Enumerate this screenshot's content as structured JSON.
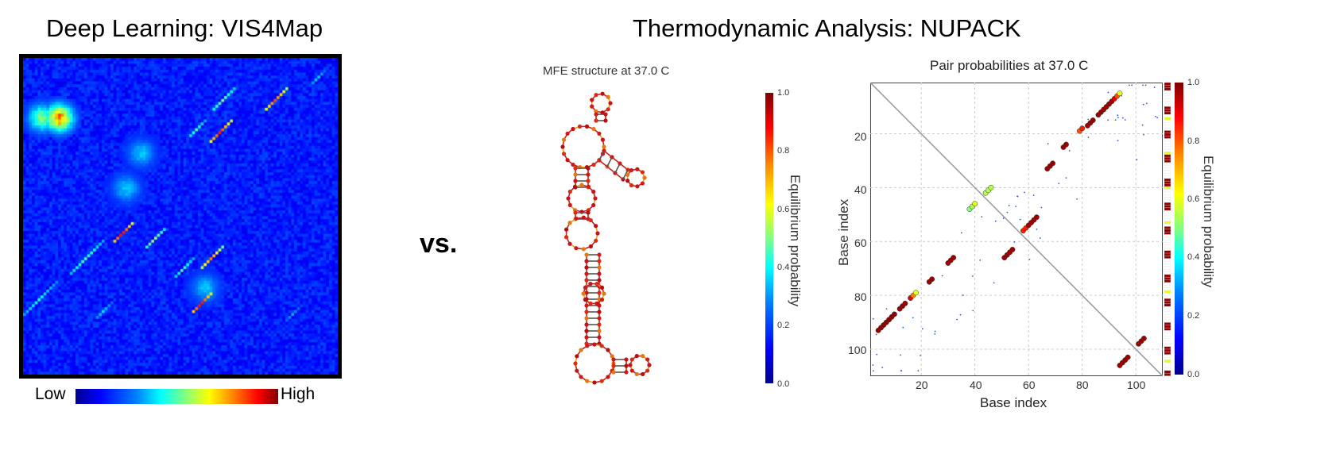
{
  "panel_left": {
    "title": "Deep Learning: VIS4Map",
    "colorbar": {
      "low_label": "Low",
      "high_label": "High"
    }
  },
  "separator": "vs.",
  "panel_right": {
    "title": "Thermodynamic Analysis: NUPACK",
    "mfe": {
      "title": "MFE structure at 37.0 C",
      "colorbar_label": "Equilibrium probability",
      "colorbar_ticks": [
        "1.0",
        "0.8",
        "0.6",
        "0.4",
        "0.2",
        "0.0"
      ]
    },
    "pairprob": {
      "title": "Pair probabilities at 37.0 C",
      "xlabel": "Base index",
      "ylabel": "Base index",
      "x_ticks": [
        "20",
        "40",
        "60",
        "80",
        "100"
      ],
      "y_ticks": [
        "20",
        "40",
        "60",
        "80",
        "100"
      ],
      "colorbar_label": "Equilibrium probability",
      "colorbar_ticks": [
        "1.0",
        "0.8",
        "0.6",
        "0.4",
        "0.2",
        "0.0"
      ]
    }
  },
  "chart_data": [
    {
      "type": "heatmap",
      "title": "Deep Learning: VIS4Map",
      "colormap": "jet",
      "scale_labels": [
        "Low",
        "High"
      ],
      "grid_size": 108,
      "background_value": 0.15,
      "diagonal_features": [
        {
          "row_start": 4,
          "col_start": 103,
          "length": 5,
          "value": 0.35
        },
        {
          "row_start": 10,
          "col_start": 72,
          "length": 8,
          "value": 0.5
        },
        {
          "row_start": 10,
          "col_start": 90,
          "length": 8,
          "value": 0.8
        },
        {
          "row_start": 21,
          "col_start": 62,
          "length": 6,
          "value": 0.45
        },
        {
          "row_start": 21,
          "col_start": 71,
          "length": 8,
          "value": 0.85
        },
        {
          "row_start": 56,
          "col_start": 37,
          "length": 7,
          "value": 0.9
        },
        {
          "row_start": 58,
          "col_start": 48,
          "length": 7,
          "value": 0.55
        },
        {
          "row_start": 62,
          "col_start": 27,
          "length": 12,
          "value": 0.45
        },
        {
          "row_start": 64,
          "col_start": 68,
          "length": 8,
          "value": 0.75
        },
        {
          "row_start": 68,
          "col_start": 58,
          "length": 7,
          "value": 0.45
        },
        {
          "row_start": 76,
          "col_start": 11,
          "length": 12,
          "value": 0.4
        },
        {
          "row_start": 80,
          "col_start": 64,
          "length": 7,
          "value": 0.9
        },
        {
          "row_start": 83,
          "col_start": 30,
          "length": 6,
          "value": 0.35
        },
        {
          "row_start": 84,
          "col_start": 95,
          "length": 6,
          "value": 0.3
        }
      ],
      "blobs": [
        {
          "row": 20,
          "col": 6,
          "value": 0.55
        },
        {
          "row": 20,
          "col": 12,
          "value": 0.85
        },
        {
          "row": 44,
          "col": 35,
          "value": 0.35
        },
        {
          "row": 32,
          "col": 40,
          "value": 0.35
        },
        {
          "row": 78,
          "col": 62,
          "value": 0.35
        }
      ]
    },
    {
      "type": "scatter",
      "title": "Pair probabilities at 37.0 C",
      "xlabel": "Base index",
      "ylabel": "Base index",
      "xlim": [
        1,
        110
      ],
      "ylim": [
        110,
        1
      ],
      "colorbar": {
        "label": "Equilibrium probability",
        "range": [
          0.0,
          1.0
        ]
      },
      "diagonal_line": true,
      "series": [
        {
          "points": [
            {
              "x": 4,
              "y": 93,
              "p": 0.98
            },
            {
              "x": 5,
              "y": 92,
              "p": 0.98
            },
            {
              "x": 6,
              "y": 91,
              "p": 0.98
            },
            {
              "x": 7,
              "y": 90,
              "p": 0.98
            },
            {
              "x": 8,
              "y": 89,
              "p": 0.98
            },
            {
              "x": 9,
              "y": 88,
              "p": 0.98
            },
            {
              "x": 10,
              "y": 87,
              "p": 0.98
            },
            {
              "x": 12,
              "y": 85,
              "p": 0.97
            },
            {
              "x": 13,
              "y": 84,
              "p": 0.97
            },
            {
              "x": 14,
              "y": 83,
              "p": 0.97
            },
            {
              "x": 16,
              "y": 81,
              "p": 0.9
            },
            {
              "x": 17,
              "y": 80,
              "p": 0.75
            },
            {
              "x": 18,
              "y": 79,
              "p": 0.6
            },
            {
              "x": 23,
              "y": 75,
              "p": 0.97
            },
            {
              "x": 24,
              "y": 74,
              "p": 0.97
            },
            {
              "x": 30,
              "y": 68,
              "p": 0.97
            },
            {
              "x": 31,
              "y": 67,
              "p": 0.97
            },
            {
              "x": 32,
              "y": 66,
              "p": 0.97
            },
            {
              "x": 38,
              "y": 48,
              "p": 0.5
            },
            {
              "x": 39,
              "y": 47,
              "p": 0.55
            },
            {
              "x": 40,
              "y": 46,
              "p": 0.6
            },
            {
              "x": 44,
              "y": 42,
              "p": 0.55
            },
            {
              "x": 45,
              "y": 41,
              "p": 0.55
            },
            {
              "x": 46,
              "y": 40,
              "p": 0.55
            },
            {
              "x": 51,
              "y": 66,
              "p": 0.97
            },
            {
              "x": 52,
              "y": 65,
              "p": 0.97
            },
            {
              "x": 53,
              "y": 64,
              "p": 0.97
            },
            {
              "x": 54,
              "y": 63,
              "p": 0.97
            },
            {
              "x": 58,
              "y": 56,
              "p": 0.85
            },
            {
              "x": 59,
              "y": 55,
              "p": 0.85
            },
            {
              "x": 60,
              "y": 54,
              "p": 0.97
            },
            {
              "x": 61,
              "y": 53,
              "p": 0.97
            },
            {
              "x": 62,
              "y": 52,
              "p": 0.97
            },
            {
              "x": 63,
              "y": 51,
              "p": 0.97
            },
            {
              "x": 67,
              "y": 33,
              "p": 0.97
            },
            {
              "x": 68,
              "y": 32,
              "p": 0.97
            },
            {
              "x": 69,
              "y": 31,
              "p": 0.97
            },
            {
              "x": 73,
              "y": 25,
              "p": 0.97
            },
            {
              "x": 74,
              "y": 24,
              "p": 0.97
            },
            {
              "x": 79,
              "y": 19,
              "p": 0.8
            },
            {
              "x": 80,
              "y": 18,
              "p": 0.85
            },
            {
              "x": 82,
              "y": 17,
              "p": 0.97
            },
            {
              "x": 83,
              "y": 16,
              "p": 0.97
            },
            {
              "x": 84,
              "y": 15,
              "p": 0.97
            },
            {
              "x": 86,
              "y": 13,
              "p": 0.97
            },
            {
              "x": 87,
              "y": 12,
              "p": 0.97
            },
            {
              "x": 88,
              "y": 11,
              "p": 0.97
            },
            {
              "x": 89,
              "y": 10,
              "p": 0.97
            },
            {
              "x": 90,
              "y": 9,
              "p": 0.97
            },
            {
              "x": 91,
              "y": 8,
              "p": 0.97
            },
            {
              "x": 92,
              "y": 7,
              "p": 0.9
            },
            {
              "x": 93,
              "y": 6,
              "p": 0.8
            },
            {
              "x": 94,
              "y": 5,
              "p": 0.6
            },
            {
              "x": 94,
              "y": 106,
              "p": 0.97
            },
            {
              "x": 95,
              "y": 105,
              "p": 0.97
            },
            {
              "x": 96,
              "y": 104,
              "p": 0.97
            },
            {
              "x": 97,
              "y": 103,
              "p": 0.97
            },
            {
              "x": 101,
              "y": 98,
              "p": 0.97
            },
            {
              "x": 102,
              "y": 97,
              "p": 0.97
            },
            {
              "x": 103,
              "y": 96,
              "p": 0.97
            }
          ]
        }
      ]
    }
  ]
}
